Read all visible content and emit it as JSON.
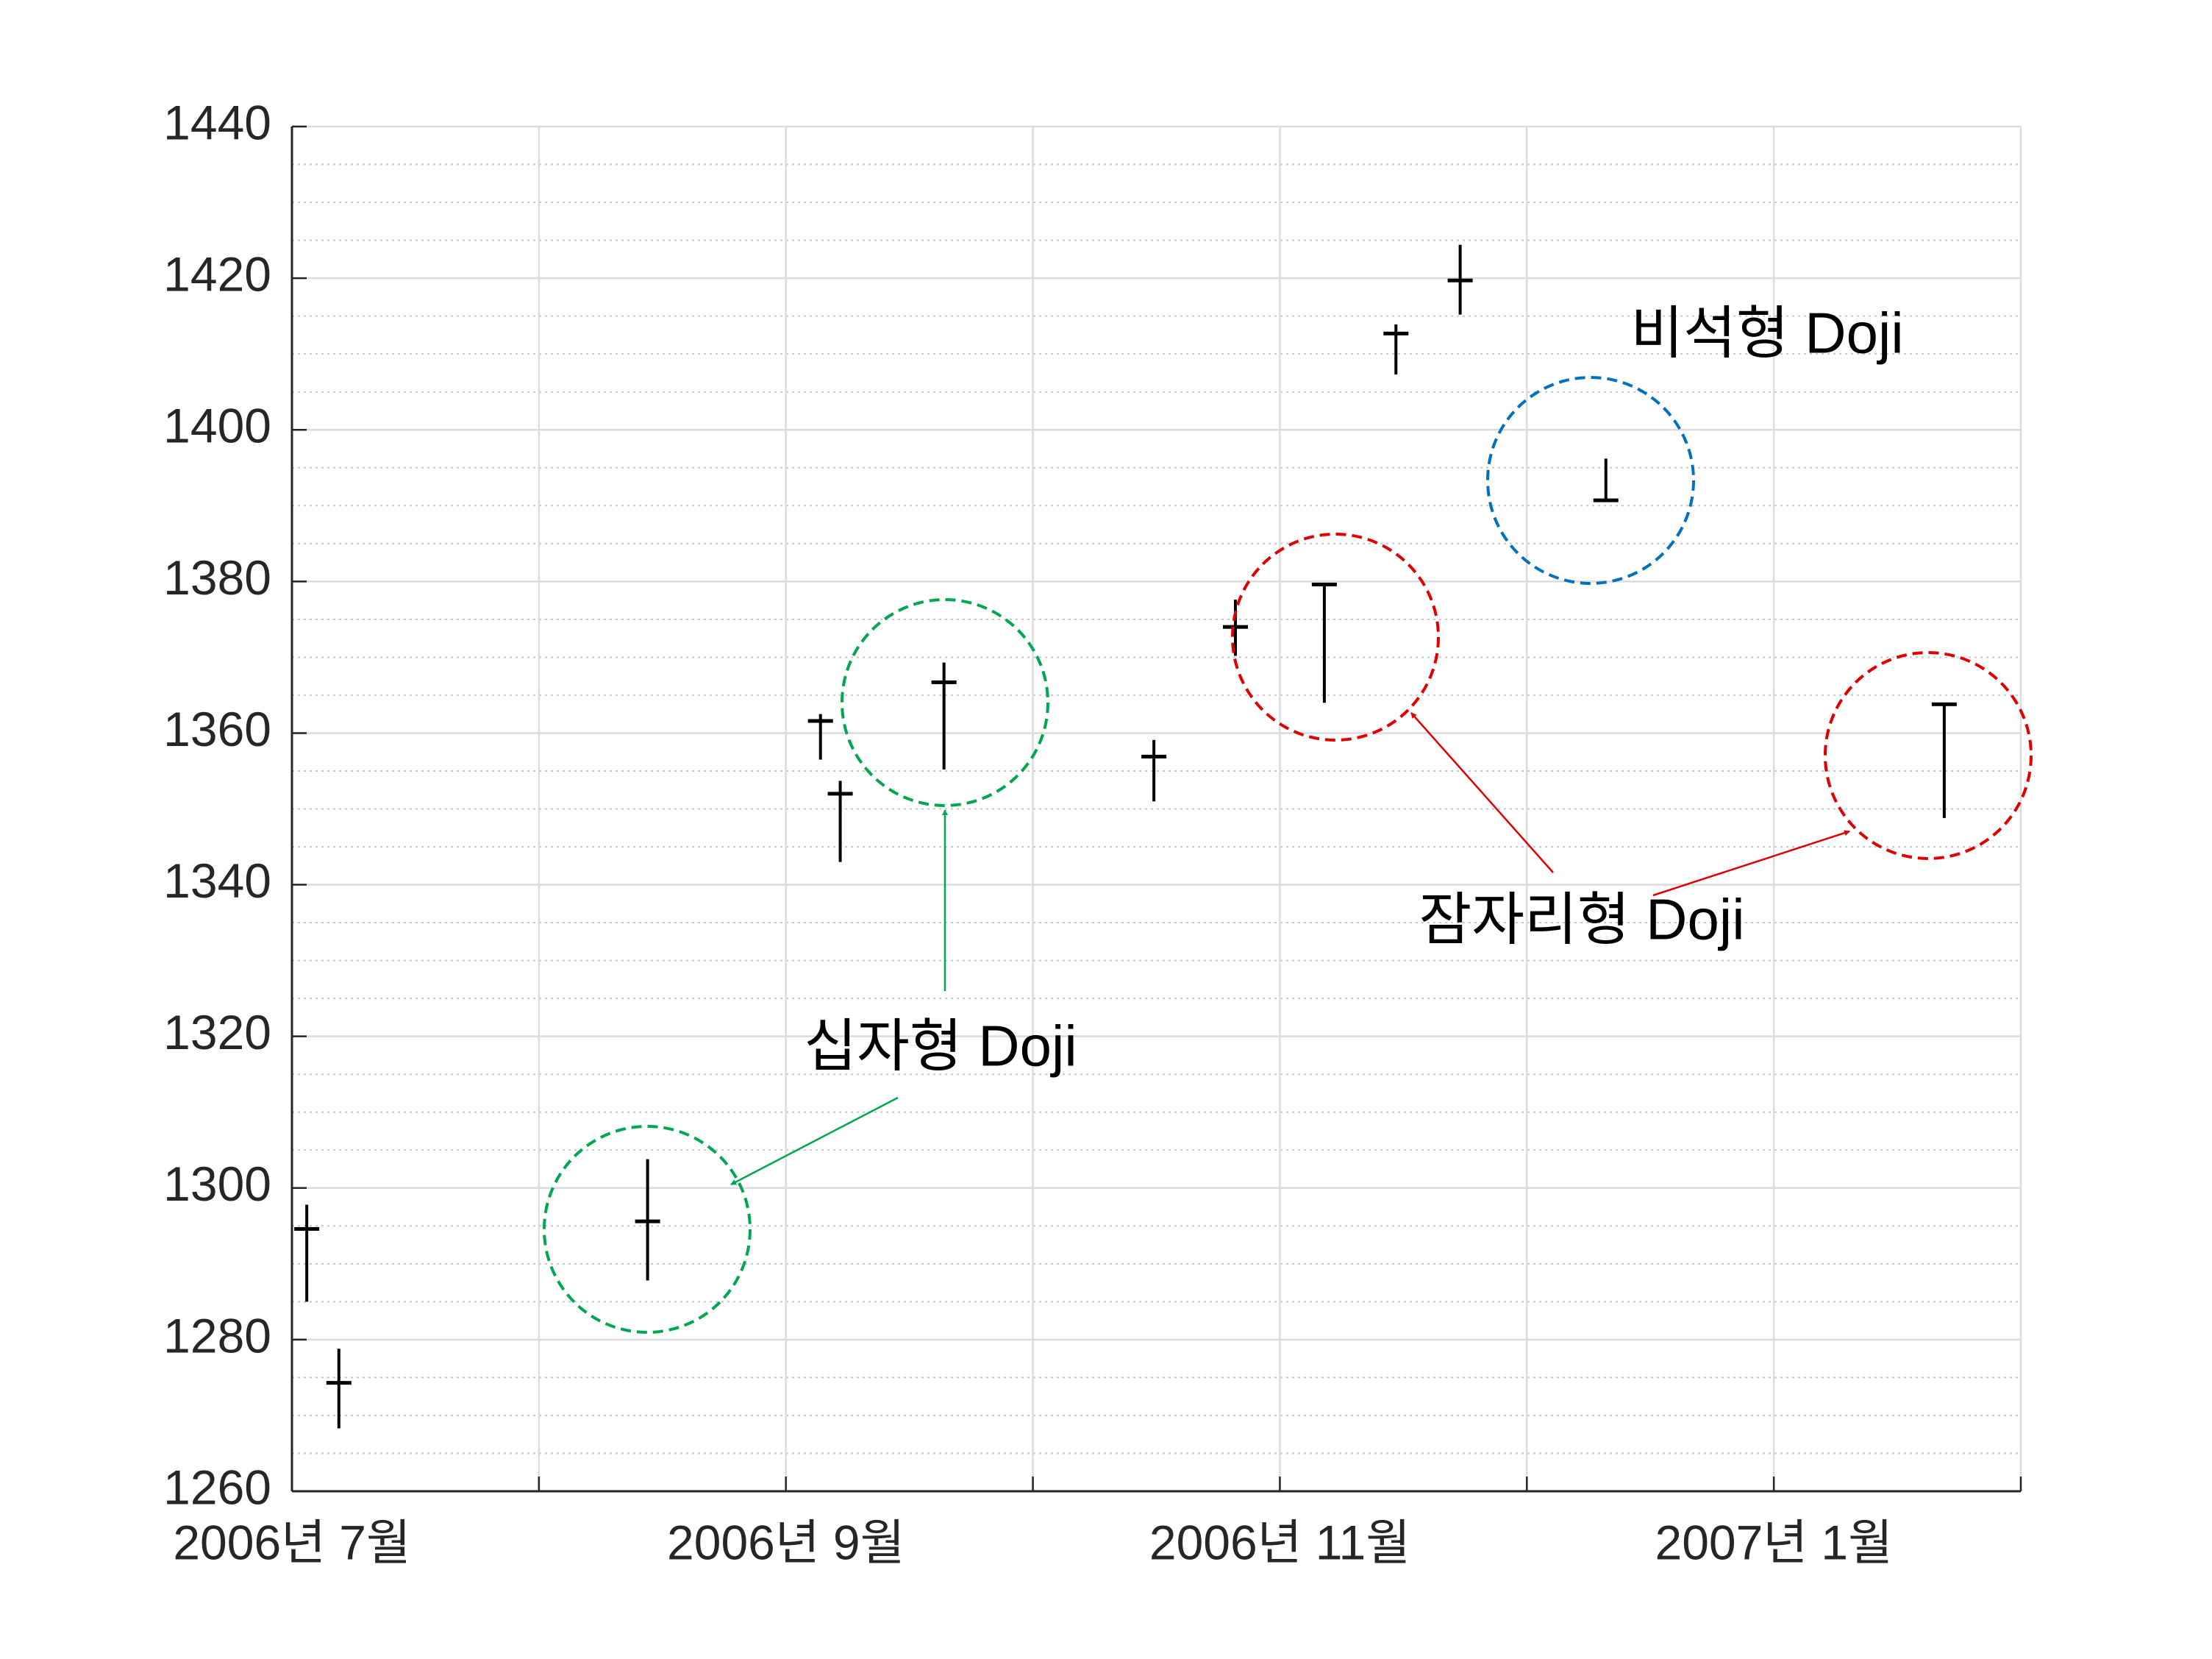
{
  "chart_data": {
    "type": "candlestick",
    "x": [
      0.06,
      0.19,
      1.44,
      2.14,
      2.22,
      2.64,
      3.49,
      3.82,
      4.18,
      4.47,
      4.73,
      5.32,
      6.69
    ],
    "open": [
      1294.6,
      1274.3,
      1295.6,
      1361.6,
      1352.0,
      1366.7,
      1356.9,
      1374.0,
      1379.6,
      1412.7,
      1419.7,
      1390.7,
      1363.8
    ],
    "high": [
      1297.8,
      1278.8,
      1303.8,
      1362.5,
      1353.7,
      1369.3,
      1359.1,
      1377.6,
      1379.6,
      1413.9,
      1424.4,
      1396.2,
      1364.0
    ],
    "low": [
      1285.0,
      1268.3,
      1287.8,
      1356.5,
      1343.0,
      1355.2,
      1351.0,
      1370.2,
      1364.0,
      1407.3,
      1415.2,
      1390.5,
      1348.8
    ],
    "close": [
      1294.6,
      1274.3,
      1295.6,
      1361.6,
      1352.0,
      1366.7,
      1356.9,
      1374.0,
      1379.6,
      1412.7,
      1419.7,
      1390.7,
      1363.8
    ],
    "color": "#000000",
    "xlim": [
      0,
      7
    ],
    "xticks": [
      {
        "value": 0,
        "label": "2006년 7월"
      },
      {
        "value": 1,
        "label": null
      },
      {
        "value": 2,
        "label": "2006년 9월"
      },
      {
        "value": 3,
        "label": null
      },
      {
        "value": 4,
        "label": "2006년 11월"
      },
      {
        "value": 5,
        "label": null
      },
      {
        "value": 6,
        "label": "2007년 1월"
      },
      {
        "value": 7,
        "label": null
      }
    ],
    "ylim": [
      1260,
      1440
    ],
    "yticks": [
      1260,
      1280,
      1300,
      1320,
      1340,
      1360,
      1380,
      1400,
      1420,
      1440
    ],
    "grid": true,
    "minor_grid": true,
    "annotations": [
      {
        "text": "비석형 Doji"
      },
      {
        "text": "잠자리형 Doji"
      },
      {
        "text": "십자형 Doji"
      }
    ]
  }
}
